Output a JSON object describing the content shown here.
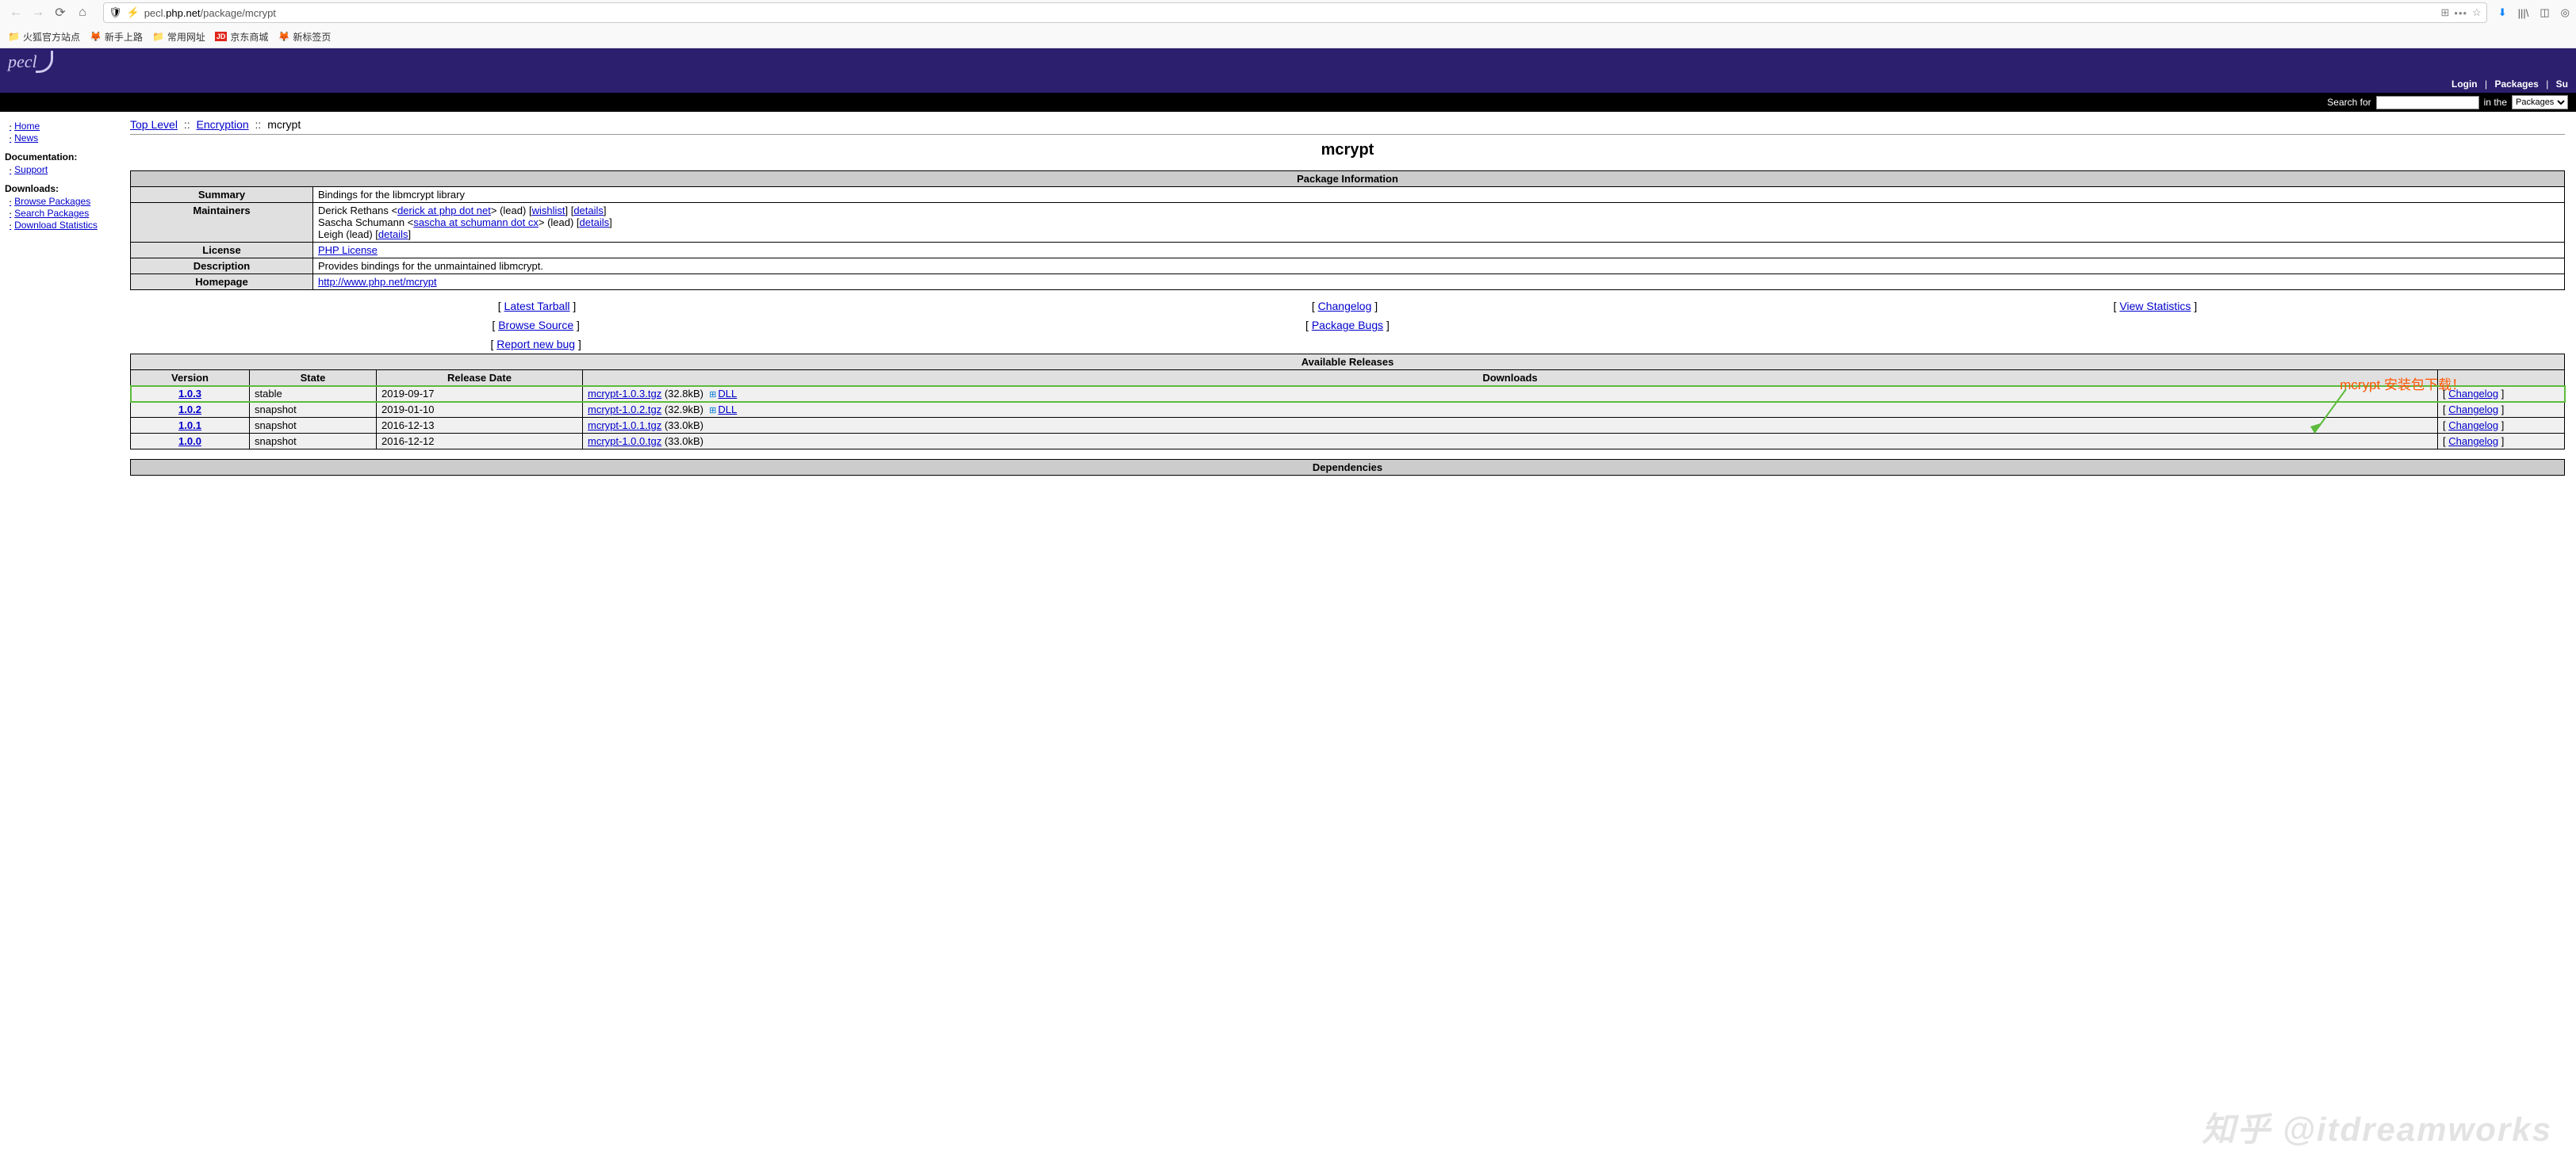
{
  "browser": {
    "url_prefix": "pecl.",
    "url_domain": "php.net",
    "url_path": "/package/mcrypt",
    "bookmarks": [
      "火狐官方站点",
      "新手上路",
      "常用网址",
      "京东商城",
      "新标签页"
    ]
  },
  "header": {
    "logo": "pecl",
    "login": "Login",
    "packages": "Packages",
    "support_short": "Su",
    "search_label": "Search for",
    "in_the": "in the",
    "search_scope": "Packages"
  },
  "sidebar": {
    "home": "Home",
    "news": "News",
    "doc_heading": "Documentation:",
    "support": "Support",
    "dl_heading": "Downloads:",
    "browse": "Browse Packages",
    "search": "Search Packages",
    "stats": "Download Statistics"
  },
  "breadcrumb": {
    "top": "Top Level",
    "cat": "Encryption",
    "leaf": "mcrypt"
  },
  "pkg_title": "mcrypt",
  "info": {
    "title": "Package Information",
    "summary_label": "Summary",
    "summary": "Bindings for the libmcrypt library",
    "maint_label": "Maintainers",
    "maint1_name": "Derick Rethans <",
    "maint1_email": "derick at php dot net",
    "maint1_role": "> (lead) [",
    "wishlist": "wishlist",
    "details": "details",
    "maint2_name": "Sascha Schumann <",
    "maint2_email": "sascha at schumann dot cx",
    "maint2_role": "> (lead) [",
    "maint3": "Leigh (lead) [",
    "license_label": "License",
    "license": "PHP License",
    "desc_label": "Description",
    "desc": "Provides bindings for the unmaintained libmcrypt.",
    "home_label": "Homepage",
    "homepage": "http://www.php.net/mcrypt"
  },
  "actions": {
    "tarball": "Latest Tarball",
    "changelog": "Changelog",
    "view_stats": "View Statistics",
    "browse_src": "Browse Source",
    "bugs": "Package Bugs",
    "report": "Report new bug"
  },
  "releases": {
    "title": "Available Releases",
    "col_version": "Version",
    "col_state": "State",
    "col_date": "Release Date",
    "col_downloads": "Downloads",
    "changelog": "Changelog",
    "dll": "DLL",
    "rows": [
      {
        "v": "1.0.3",
        "state": "stable",
        "date": "2019-09-17",
        "file": "mcrypt-1.0.3.tgz",
        "size": "(32.8kB)",
        "dll": true,
        "hl": true
      },
      {
        "v": "1.0.2",
        "state": "snapshot",
        "date": "2019-01-10",
        "file": "mcrypt-1.0.2.tgz",
        "size": "(32.9kB)",
        "dll": true,
        "hl": false
      },
      {
        "v": "1.0.1",
        "state": "snapshot",
        "date": "2016-12-13",
        "file": "mcrypt-1.0.1.tgz",
        "size": "(33.0kB)",
        "dll": false,
        "hl": false
      },
      {
        "v": "1.0.0",
        "state": "snapshot",
        "date": "2016-12-12",
        "file": "mcrypt-1.0.0.tgz",
        "size": "(33.0kB)",
        "dll": false,
        "hl": false
      }
    ]
  },
  "deps_title": "Dependencies",
  "annotation": "mcrypt 安装包下载！",
  "watermark": "知乎 @itdreamworks"
}
